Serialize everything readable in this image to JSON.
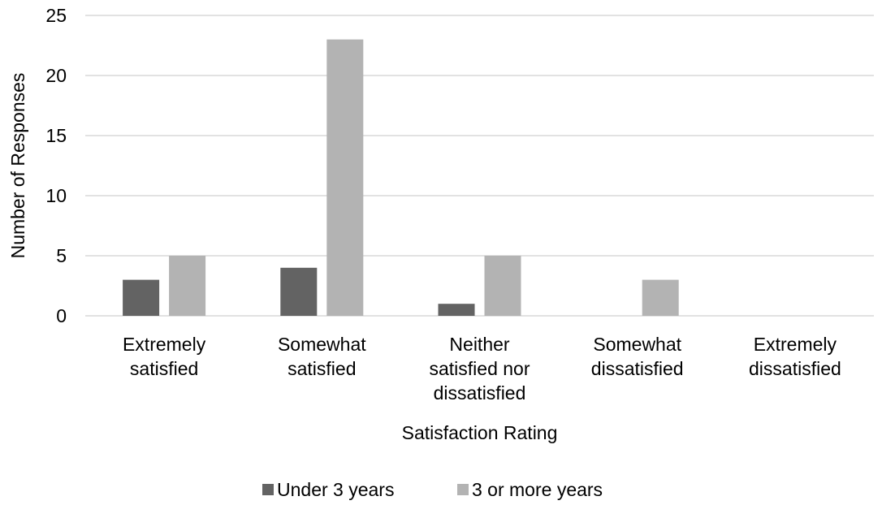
{
  "chart_data": {
    "type": "bar",
    "categories": [
      "Extremely satisfied",
      "Somewhat satisfied",
      "Neither satisfied nor dissatisfied",
      "Somewhat dissatisfied",
      "Extremely dissatisfied"
    ],
    "category_lines": [
      [
        "Extremely",
        "satisfied"
      ],
      [
        "Somewhat",
        "satisfied"
      ],
      [
        "Neither",
        "satisfied nor",
        "dissatisfied"
      ],
      [
        "Somewhat",
        "dissatisfied"
      ],
      [
        "Extremely",
        "dissatisfied"
      ]
    ],
    "series": [
      {
        "name": "Under 3 years",
        "color": "#636363",
        "values": [
          3,
          4,
          1,
          0,
          0
        ]
      },
      {
        "name": "3 or more years",
        "color": "#b3b3b3",
        "values": [
          5,
          23,
          5,
          3,
          0
        ]
      }
    ],
    "xlabel": "Satisfaction Rating",
    "ylabel": "Number of Responses",
    "ylim": [
      0,
      25
    ],
    "yticks": [
      0,
      5,
      10,
      15,
      20,
      25
    ],
    "grid": true,
    "legend_position": "bottom"
  }
}
